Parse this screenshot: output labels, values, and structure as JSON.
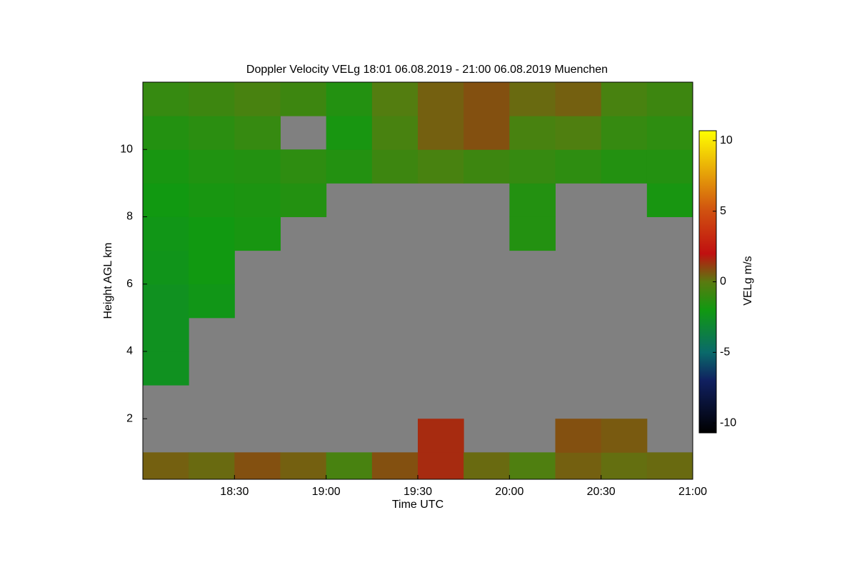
{
  "chart_data": {
    "type": "heatmap",
    "title": "Doppler Velocity VELg   18:01 06.08.2019 - 21:00 06.08.2019 Muenchen",
    "x_label": "Time UTC",
    "y_label": "Height AGL km",
    "colorbar_label": "VELg m/s",
    "xbins": [
      18.0,
      18.25,
      18.5,
      18.75,
      19.0,
      19.25,
      19.5,
      19.75,
      20.0,
      20.25,
      20.5,
      20.75,
      21.0
    ],
    "ybins": [
      0,
      1,
      2,
      3,
      4,
      5,
      6,
      7,
      8,
      9,
      10,
      11,
      12
    ],
    "values": [
      [
        0.5,
        0.3,
        0.8,
        0.5,
        -0.5,
        0.8,
        1.5,
        0.3,
        -0.3,
        0.5,
        0.2,
        0.3
      ],
      [
        null,
        null,
        null,
        null,
        null,
        null,
        1.5,
        null,
        null,
        0.8,
        0.6,
        null
      ],
      [
        null,
        null,
        null,
        null,
        null,
        null,
        null,
        null,
        null,
        null,
        null,
        null
      ],
      [
        -2.5,
        null,
        null,
        null,
        null,
        null,
        null,
        null,
        null,
        null,
        null,
        null
      ],
      [
        -2.5,
        null,
        null,
        null,
        null,
        null,
        null,
        null,
        null,
        null,
        null,
        null
      ],
      [
        -2.5,
        -2.2,
        null,
        null,
        null,
        null,
        null,
        null,
        null,
        null,
        null,
        null
      ],
      [
        -2.3,
        -2.0,
        null,
        null,
        null,
        null,
        null,
        null,
        null,
        null,
        null,
        null
      ],
      [
        -2.2,
        -2.0,
        -1.8,
        null,
        null,
        null,
        null,
        null,
        -1.5,
        null,
        null,
        null
      ],
      [
        -2.0,
        -1.8,
        -1.7,
        -1.5,
        null,
        null,
        null,
        null,
        -1.5,
        null,
        null,
        -1.8
      ],
      [
        -1.8,
        -1.6,
        -1.5,
        -1.2,
        -1.5,
        -0.8,
        -0.5,
        -0.8,
        -1.0,
        -1.2,
        -1.5,
        -1.5
      ],
      [
        -1.5,
        -1.3,
        -1.0,
        null,
        -1.8,
        -0.5,
        0.5,
        0.8,
        -0.5,
        -0.3,
        -1.0,
        -1.2
      ],
      [
        -1.0,
        -0.8,
        -0.5,
        -0.8,
        -1.5,
        -0.2,
        0.5,
        0.8,
        0.3,
        0.5,
        -0.5,
        -0.8
      ]
    ],
    "xlim": [
      18.0,
      21.0
    ],
    "ylim": [
      0.2,
      12
    ],
    "clim": [
      -10.7,
      10.7
    ],
    "xticks": [
      {
        "value": 18.5,
        "label": "18:30"
      },
      {
        "value": 19.0,
        "label": "19:00"
      },
      {
        "value": 19.5,
        "label": "19:30"
      },
      {
        "value": 20.0,
        "label": "20:00"
      },
      {
        "value": 20.5,
        "label": "20:30"
      },
      {
        "value": 21.0,
        "label": "21:00"
      }
    ],
    "yticks": [
      2,
      4,
      6,
      8,
      10
    ],
    "cticks": [
      10,
      5,
      0,
      -5,
      -10
    ],
    "colormap": [
      [
        -10.7,
        "#000000"
      ],
      [
        -7,
        "#102060"
      ],
      [
        -5,
        "#0a6a6a"
      ],
      [
        -2,
        "#119911"
      ],
      [
        0,
        "#5a7a10"
      ],
      [
        2,
        "#c01010"
      ],
      [
        5,
        "#d05010"
      ],
      [
        10.7,
        "#ffff00"
      ]
    ],
    "null_color": "#808080"
  }
}
